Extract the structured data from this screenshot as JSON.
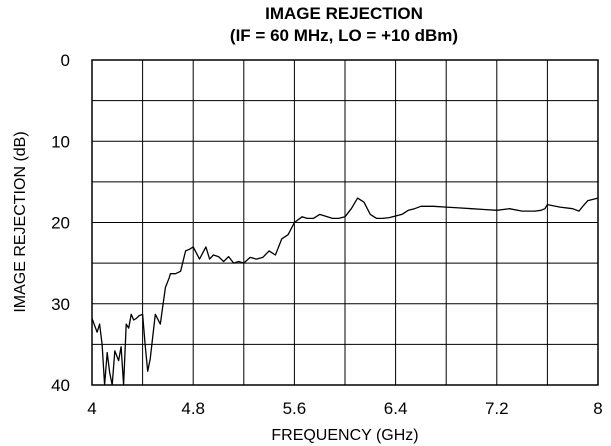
{
  "chart_data": {
    "type": "line",
    "title": "IMAGE REJECTION",
    "subtitle": "(IF = 60 MHz, LO = +10 dBm)",
    "xlabel": "FREQUENCY (GHz)",
    "ylabel": "IMAGE REJECTION (dB)",
    "xlim": [
      4,
      8
    ],
    "ylim": [
      0,
      40
    ],
    "y_inverted": true,
    "grid": true,
    "x_ticks": [
      4,
      4.8,
      5.6,
      6.4,
      7.2,
      8
    ],
    "x_tick_labels": [
      "4",
      "4.8",
      "5.6",
      "6.4",
      "7.2",
      "8"
    ],
    "y_ticks": [
      0,
      10,
      20,
      30,
      40
    ],
    "y_tick_labels": [
      "0",
      "10",
      "20",
      "30",
      "40"
    ],
    "series": [
      {
        "color": "#000000",
        "x": [
          4.0,
          4.04,
          4.06,
          4.08,
          4.1,
          4.12,
          4.14,
          4.16,
          4.18,
          4.21,
          4.23,
          4.25,
          4.27,
          4.29,
          4.31,
          4.33,
          4.35,
          4.37,
          4.4,
          4.42,
          4.44,
          4.46,
          4.5,
          4.54,
          4.58,
          4.61,
          4.62,
          4.64,
          4.66,
          4.7,
          4.74,
          4.77,
          4.8,
          4.85,
          4.9,
          4.93,
          4.96,
          5.0,
          5.04,
          5.08,
          5.12,
          5.16,
          5.2,
          5.25,
          5.3,
          5.35,
          5.4,
          5.45,
          5.5,
          5.55,
          5.6,
          5.66,
          5.7,
          5.75,
          5.8,
          5.86,
          5.9,
          5.95,
          6.0,
          6.05,
          6.1,
          6.15,
          6.2,
          6.25,
          6.3,
          6.35,
          6.4,
          6.45,
          6.5,
          6.55,
          6.6,
          6.7,
          6.8,
          6.9,
          7.0,
          7.1,
          7.2,
          7.3,
          7.4,
          7.5,
          7.55,
          7.58,
          7.6,
          7.7,
          7.8,
          7.85,
          7.88,
          7.92,
          8.0
        ],
        "y": [
          31.8,
          33.5,
          32.5,
          35.0,
          40.0,
          36.0,
          38.5,
          40.0,
          35.8,
          37.0,
          35.3,
          40.0,
          32.5,
          33.0,
          31.3,
          32.0,
          31.8,
          31.5,
          31.3,
          35.0,
          38.3,
          36.8,
          31.3,
          32.5,
          28.0,
          26.8,
          26.3,
          26.3,
          26.3,
          26.0,
          23.5,
          23.3,
          23.0,
          24.5,
          23.0,
          24.5,
          24.0,
          24.2,
          24.8,
          24.2,
          25.0,
          24.8,
          25.0,
          24.3,
          24.5,
          24.3,
          23.5,
          24.0,
          22.0,
          21.5,
          20.0,
          19.3,
          19.5,
          19.5,
          19.0,
          19.3,
          19.5,
          19.5,
          19.3,
          18.3,
          17.0,
          17.5,
          19.0,
          19.5,
          19.5,
          19.4,
          19.2,
          19.0,
          18.5,
          18.3,
          18.0,
          18.0,
          18.1,
          18.2,
          18.3,
          18.4,
          18.5,
          18.3,
          18.6,
          18.6,
          18.5,
          18.3,
          17.8,
          18.1,
          18.3,
          18.6,
          18.0,
          17.3,
          17.0
        ]
      }
    ]
  }
}
